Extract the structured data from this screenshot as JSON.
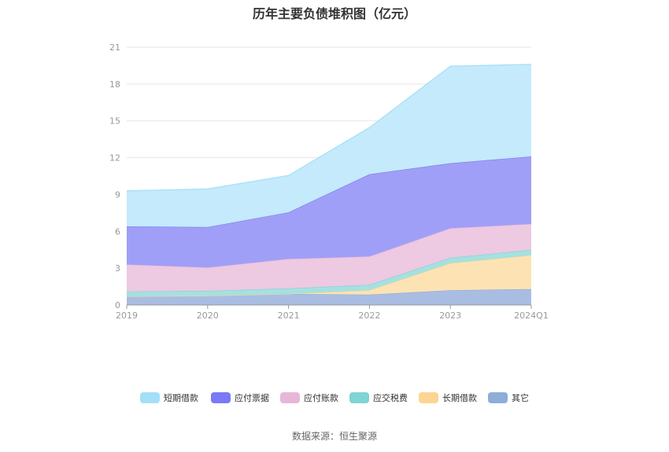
{
  "chart_data": {
    "type": "area",
    "stacked": true,
    "title": "历年主要负债堆积图（亿元）",
    "categories": [
      "2019",
      "2020",
      "2021",
      "2022",
      "2023",
      "2024Q1"
    ],
    "ylim": [
      0,
      21
    ],
    "yticks": [
      0,
      3,
      6,
      9,
      12,
      15,
      18,
      21
    ],
    "series": [
      {
        "name": "其它",
        "color": "#8eadd9",
        "fill": "#a9bde3",
        "values": [
          0.7,
          0.75,
          0.9,
          0.85,
          1.2,
          1.3
        ]
      },
      {
        "name": "长期借款",
        "color": "#fcd592",
        "fill": "#fde3b4",
        "values": [
          0.0,
          0.0,
          0.0,
          0.35,
          2.2,
          2.75
        ]
      },
      {
        "name": "应交税费",
        "color": "#7fd4d4",
        "fill": "#a6e0e0",
        "values": [
          0.4,
          0.4,
          0.45,
          0.45,
          0.45,
          0.45
        ]
      },
      {
        "name": "应付账款",
        "color": "#e7b6d7",
        "fill": "#edc9e2",
        "values": [
          2.2,
          1.9,
          2.4,
          2.3,
          2.4,
          2.1
        ]
      },
      {
        "name": "应付票据",
        "color": "#7b79f5",
        "fill": "#a09ff7",
        "values": [
          3.1,
          3.3,
          3.8,
          6.7,
          5.3,
          5.5
        ]
      },
      {
        "name": "短期借款",
        "color": "#a3dff7",
        "fill": "#c5eafb",
        "values": [
          2.9,
          3.1,
          3.0,
          3.8,
          7.9,
          7.5
        ]
      }
    ],
    "legend_order": [
      "短期借款",
      "应付票据",
      "应付账款",
      "应交税费",
      "长期借款",
      "其它"
    ]
  },
  "source": "数据来源：恒生聚源"
}
